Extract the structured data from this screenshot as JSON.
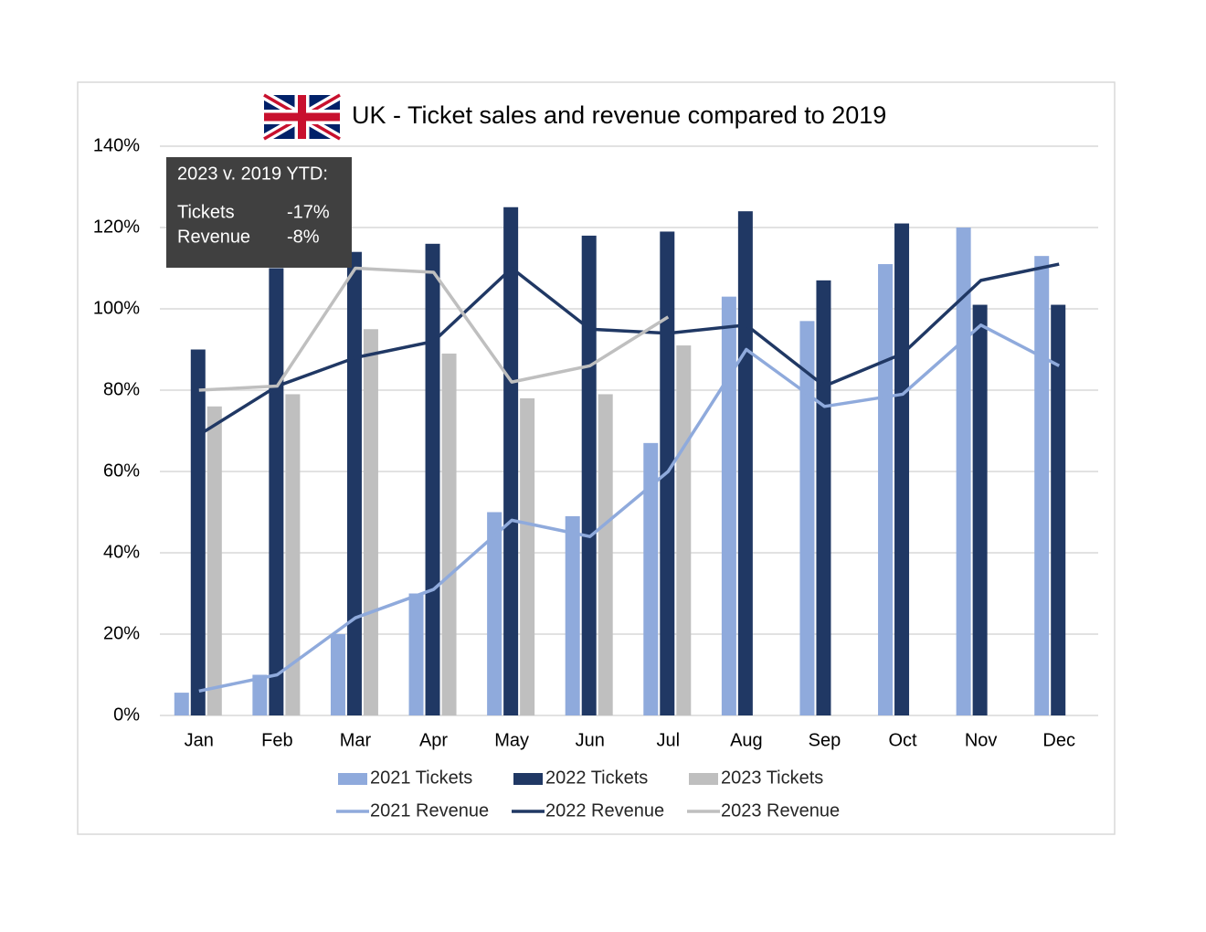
{
  "chart_data": {
    "type": "combo",
    "title": "UK - Ticket sales and revenue compared to 2019",
    "annotation": {
      "heading": "2023 v. 2019 YTD:",
      "rows": [
        [
          "Tickets",
          "-17%"
        ],
        [
          "Revenue",
          "-8%"
        ]
      ]
    },
    "categories": [
      "Jan",
      "Feb",
      "Mar",
      "Apr",
      "May",
      "Jun",
      "Jul",
      "Aug",
      "Sep",
      "Oct",
      "Nov",
      "Dec"
    ],
    "series": [
      {
        "name": "2021 Tickets",
        "type": "bar",
        "color": "#8faadc",
        "values": [
          5.6,
          10,
          20,
          30,
          50,
          49,
          67,
          103,
          97,
          111,
          120,
          113
        ]
      },
      {
        "name": "2022 Tickets",
        "type": "bar",
        "color": "#203864",
        "values": [
          90,
          110,
          114,
          116,
          125,
          118,
          119,
          124,
          107,
          121,
          101,
          101
        ]
      },
      {
        "name": "2023 Tickets",
        "type": "bar",
        "color": "#bfbfbf",
        "values": [
          76,
          79,
          95,
          89,
          78,
          79,
          91,
          null,
          null,
          null,
          null,
          null
        ]
      },
      {
        "name": "2021 Revenue",
        "type": "line",
        "color": "#8faadc",
        "values": [
          6,
          10,
          24,
          31,
          48,
          44,
          60,
          90,
          76,
          79,
          96,
          86
        ]
      },
      {
        "name": "2022 Revenue",
        "type": "line",
        "color": "#203864",
        "values": [
          69,
          81,
          88,
          92,
          110,
          95,
          94,
          96,
          81,
          89,
          107,
          111
        ]
      },
      {
        "name": "2023 Revenue",
        "type": "line",
        "color": "#bfbfbf",
        "values": [
          80,
          81,
          110,
          109,
          82,
          86,
          98,
          null,
          null,
          null,
          null,
          null
        ]
      }
    ],
    "ylim": [
      0,
      140
    ],
    "yticks": [
      {
        "value": 0,
        "label": "0%"
      },
      {
        "value": 20,
        "label": "20%"
      },
      {
        "value": 40,
        "label": "40%"
      },
      {
        "value": 60,
        "label": "60%"
      },
      {
        "value": 80,
        "label": "80%"
      },
      {
        "value": 100,
        "label": "100%"
      },
      {
        "value": 120,
        "label": "120%"
      },
      {
        "value": 140,
        "label": "140%"
      }
    ],
    "grid": true
  }
}
